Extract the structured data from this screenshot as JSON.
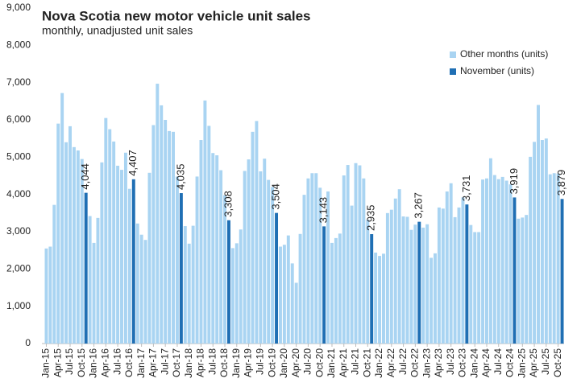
{
  "chart_data": {
    "type": "bar",
    "title": "Nova Scotia new motor vehicle unit sales",
    "subtitle": "monthly, unadjusted unit sales",
    "categories": [
      "Jan-15",
      null,
      null,
      "Apr-15",
      null,
      null,
      "Jul-15",
      null,
      null,
      "Oct-15",
      null,
      null,
      "Jan-16",
      null,
      null,
      "Apr-16",
      null,
      null,
      "Jul-16",
      null,
      null,
      "Oct-16",
      null,
      null,
      "Jan-17",
      null,
      null,
      "Apr-17",
      null,
      null,
      "Jul-17",
      null,
      null,
      "Oct-17",
      null,
      null,
      "Jan-18",
      null,
      null,
      "Apr-18",
      null,
      null,
      "Jul-18",
      null,
      null,
      "Oct-18",
      null,
      null,
      "Jan-19",
      null,
      null,
      "Apr-19",
      null,
      null,
      "Jul-19",
      null,
      null,
      "Oct-19",
      null,
      null,
      "Jan-20",
      null,
      null,
      "Apr-20",
      null,
      null,
      "Jul-20",
      null,
      null,
      "Oct-20",
      null,
      null,
      "Jan-21",
      null,
      null,
      "Apr-21",
      null,
      null,
      "Jul-21",
      null,
      null,
      "Oct-21",
      null,
      null,
      "Jan-22",
      null,
      null,
      "Apr-22",
      null,
      null,
      "Jul-22",
      null,
      null,
      "Oct-22",
      null,
      null,
      "Jan-23",
      null,
      null,
      "Apr-23",
      null,
      null,
      "Jul-23",
      null,
      null,
      "Oct-23",
      null,
      null,
      "Jan-24",
      null,
      null,
      "Apr-24",
      null,
      null,
      "Jul-24",
      null,
      null,
      "Oct-24",
      null,
      null,
      "Jan-25",
      null,
      null,
      "Apr-25",
      null,
      null,
      "Jul-25",
      null,
      null,
      "Oct-25",
      null
    ],
    "series": [
      {
        "name": "Other months (units)",
        "color": "#a9d4f2",
        "values": [
          2550,
          2600,
          3720,
          5900,
          6720,
          5400,
          5830,
          5270,
          5180,
          4950,
          null,
          3420,
          2700,
          3370,
          4860,
          6050,
          5750,
          5420,
          4770,
          4660,
          5120,
          4150,
          null,
          3220,
          2920,
          2780,
          4580,
          5860,
          6970,
          6390,
          6000,
          5700,
          5680,
          4480,
          null,
          3150,
          2680,
          3160,
          4480,
          5460,
          6520,
          5840,
          5110,
          5050,
          4650,
          3980,
          null,
          2560,
          2690,
          3060,
          4630,
          4940,
          5680,
          5970,
          4620,
          4960,
          4390,
          4200,
          null,
          2600,
          2650,
          2900,
          2150,
          1630,
          2940,
          3990,
          4430,
          4570,
          4570,
          4180,
          null,
          4080,
          2700,
          2830,
          2950,
          4510,
          4790,
          3700,
          4840,
          4780,
          4430,
          3320,
          null,
          2440,
          2350,
          2410,
          3500,
          3590,
          3890,
          4140,
          3410,
          3400,
          3050,
          3190,
          null,
          3110,
          3200,
          2300,
          2420,
          3650,
          3620,
          4080,
          4300,
          3390,
          3650,
          3920,
          null,
          3180,
          2990,
          2990,
          4400,
          4430,
          4970,
          4520,
          4410,
          4470,
          4370,
          4270,
          null,
          3350,
          3380,
          3450,
          5010,
          5410,
          6400,
          5460,
          5500,
          4540,
          4570,
          4560,
          null
        ]
      },
      {
        "name": "November (units)",
        "color": "#1f6fb4",
        "values": [
          null,
          null,
          null,
          null,
          null,
          null,
          null,
          null,
          null,
          null,
          4044,
          null,
          null,
          null,
          null,
          null,
          null,
          null,
          null,
          null,
          null,
          null,
          4407,
          null,
          null,
          null,
          null,
          null,
          null,
          null,
          null,
          null,
          null,
          null,
          4035,
          null,
          null,
          null,
          null,
          null,
          null,
          null,
          null,
          null,
          null,
          null,
          3308,
          null,
          null,
          null,
          null,
          null,
          null,
          null,
          null,
          null,
          null,
          null,
          3504,
          null,
          null,
          null,
          null,
          null,
          null,
          null,
          null,
          null,
          null,
          null,
          3143,
          null,
          null,
          null,
          null,
          null,
          null,
          null,
          null,
          null,
          null,
          null,
          2935,
          null,
          null,
          null,
          null,
          null,
          null,
          null,
          null,
          null,
          null,
          null,
          3267,
          null,
          null,
          null,
          null,
          null,
          null,
          null,
          null,
          null,
          null,
          null,
          3731,
          null,
          null,
          null,
          null,
          null,
          null,
          null,
          null,
          null,
          null,
          null,
          3919,
          null,
          null,
          null,
          null,
          null,
          null,
          null,
          null,
          null,
          null,
          null,
          3879
        ],
        "value_labels": [
          null,
          null,
          null,
          null,
          null,
          null,
          null,
          null,
          null,
          null,
          "4,044",
          null,
          null,
          null,
          null,
          null,
          null,
          null,
          null,
          null,
          null,
          null,
          "4,407",
          null,
          null,
          null,
          null,
          null,
          null,
          null,
          null,
          null,
          null,
          null,
          "4,035",
          null,
          null,
          null,
          null,
          null,
          null,
          null,
          null,
          null,
          null,
          null,
          "3,308",
          null,
          null,
          null,
          null,
          null,
          null,
          null,
          null,
          null,
          null,
          null,
          "3,504",
          null,
          null,
          null,
          null,
          null,
          null,
          null,
          null,
          null,
          null,
          null,
          "3,143",
          null,
          null,
          null,
          null,
          null,
          null,
          null,
          null,
          null,
          null,
          null,
          "2,935",
          null,
          null,
          null,
          null,
          null,
          null,
          null,
          null,
          null,
          null,
          null,
          "3,267",
          null,
          null,
          null,
          null,
          null,
          null,
          null,
          null,
          null,
          null,
          null,
          "3,731",
          null,
          null,
          null,
          null,
          null,
          null,
          null,
          null,
          null,
          null,
          null,
          "3,919",
          null,
          null,
          null,
          null,
          null,
          null,
          null,
          null,
          null,
          null,
          null,
          "3,879"
        ]
      }
    ],
    "ylim": [
      0,
      9000
    ],
    "yticks": [
      0,
      {
        "value": 1000,
        "label": "1,000"
      },
      {
        "value": 2000,
        "label": "2,000"
      },
      {
        "value": 3000,
        "label": "3,000"
      },
      {
        "value": 4000,
        "label": "4,000"
      },
      {
        "value": 5000,
        "label": "5,000"
      },
      {
        "value": 6000,
        "label": "6,000"
      },
      {
        "value": 7000,
        "label": "7,000"
      },
      {
        "value": 8000,
        "label": "8,000"
      },
      {
        "value": 9000,
        "label": "9,000"
      }
    ],
    "grid": false,
    "legend": "upper right"
  }
}
